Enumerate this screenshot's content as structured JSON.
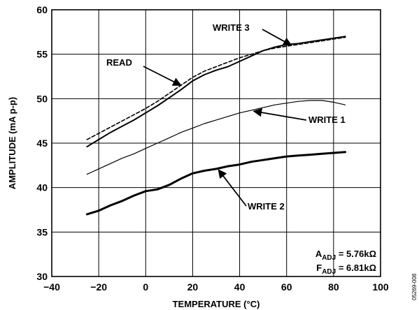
{
  "chart_data": {
    "type": "line",
    "title": "",
    "xlabel": "TEMPERATURE (°C)",
    "ylabel": "AMPLITUDE (mA p-p)",
    "xlim": [
      -40,
      100
    ],
    "ylim": [
      30,
      60
    ],
    "xticks": [
      -40,
      -20,
      0,
      20,
      40,
      60,
      80,
      100
    ],
    "yticks": [
      30,
      35,
      40,
      45,
      50,
      55,
      60
    ],
    "grid": true,
    "legend": "none",
    "series": [
      {
        "name": "WRITE 3",
        "style": "solid-thick",
        "x": [
          -25,
          -20,
          -15,
          -10,
          -5,
          0,
          5,
          10,
          15,
          20,
          25,
          30,
          35,
          40,
          45,
          50,
          55,
          60,
          65,
          70,
          75,
          80,
          85
        ],
        "y": [
          44.6,
          45.4,
          46.2,
          46.9,
          47.6,
          48.4,
          49.2,
          50.1,
          51.0,
          52.0,
          52.7,
          53.2,
          53.6,
          54.2,
          54.8,
          55.4,
          55.8,
          56.1,
          56.2,
          56.4,
          56.6,
          56.8,
          57.0
        ]
      },
      {
        "name": "READ",
        "style": "dashed",
        "x": [
          -25,
          -20,
          -15,
          -10,
          -5,
          0,
          5,
          10,
          15,
          20,
          25,
          30,
          35,
          40,
          45,
          50,
          55,
          60,
          65,
          70,
          75,
          80,
          85
        ],
        "y": [
          45.4,
          46.1,
          46.8,
          47.5,
          48.2,
          48.9,
          49.7,
          50.6,
          51.5,
          52.4,
          53.1,
          53.6,
          54.1,
          54.6,
          55.0,
          55.4,
          55.7,
          55.9,
          56.1,
          56.3,
          56.5,
          56.7,
          56.9
        ]
      },
      {
        "name": "WRITE 1",
        "style": "solid-thin",
        "x": [
          -25,
          -20,
          -15,
          -10,
          -5,
          0,
          5,
          10,
          15,
          20,
          25,
          30,
          35,
          40,
          45,
          50,
          55,
          60,
          65,
          70,
          75,
          80,
          85
        ],
        "y": [
          41.5,
          42.1,
          42.7,
          43.3,
          43.8,
          44.4,
          45.0,
          45.6,
          46.2,
          46.7,
          47.2,
          47.6,
          48.0,
          48.4,
          48.7,
          49.0,
          49.3,
          49.5,
          49.7,
          49.8,
          49.8,
          49.6,
          49.3
        ]
      },
      {
        "name": "WRITE 2",
        "style": "solid-thickest",
        "x": [
          -25,
          -20,
          -15,
          -10,
          -5,
          0,
          5,
          10,
          15,
          20,
          25,
          30,
          35,
          40,
          45,
          50,
          55,
          60,
          65,
          70,
          75,
          80,
          85
        ],
        "y": [
          37.0,
          37.4,
          38.0,
          38.5,
          39.1,
          39.6,
          39.8,
          40.3,
          41.0,
          41.6,
          41.9,
          42.1,
          42.4,
          42.6,
          42.9,
          43.1,
          43.3,
          43.5,
          43.6,
          43.7,
          43.8,
          43.9,
          44.0
        ]
      }
    ],
    "annotations": [
      {
        "text": "WRITE 3",
        "series": "WRITE 3",
        "at_x": 48,
        "anchor_x": 62,
        "anchor_y": 56.0
      },
      {
        "text": "READ",
        "series": "READ",
        "at_x": 10,
        "anchor_x": 15,
        "anchor_y": 51.5
      },
      {
        "text": "WRITE 1",
        "series": "WRITE 1",
        "at_x": 60,
        "anchor_x": 46,
        "anchor_y": 48.6
      },
      {
        "text": "WRITE 2",
        "series": "WRITE 2",
        "at_x": 30,
        "anchor_x": 31,
        "anchor_y": 42.0
      }
    ],
    "notes": {
      "adj_line": "A_ADJ = 5.76kΩ",
      "fadj_line": "F_ADJ = 6.81kΩ",
      "a_main": "A",
      "a_sub": "ADJ",
      "a_rest": " = 5.76kΩ",
      "f_main": "F",
      "f_sub": "ADJ",
      "f_rest": " = 6.81kΩ"
    },
    "figure_id": "05269-008"
  }
}
